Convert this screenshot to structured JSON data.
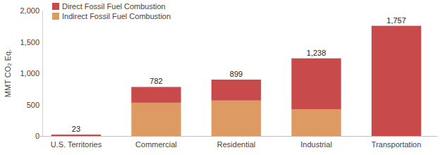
{
  "chart_data": {
    "type": "bar",
    "stacked": true,
    "y_label": "MMT CO₂ Eq.",
    "categories": [
      "U.S. Territories",
      "Commercial",
      "Residential",
      "Industrial",
      "Transportation"
    ],
    "series": [
      {
        "name": "Direct Fossil Fuel Combustion",
        "color": "#c94a4b",
        "values": [
          23,
          252,
          334,
          813,
          1757
        ]
      },
      {
        "name": "Indirect Fossil Fuel Combustion",
        "color": "#dd9a62",
        "values": [
          0,
          530,
          565,
          425,
          0
        ]
      }
    ],
    "totals": [
      23,
      782,
      899,
      1238,
      1757
    ],
    "ylim": [
      0,
      2000
    ],
    "yticks": [
      0,
      500,
      {
        "value": 1000,
        "label": "1,000"
      },
      {
        "value": 1500,
        "label": "1,500"
      },
      {
        "value": 2000,
        "label": "2,000"
      }
    ],
    "grid": false,
    "legend": "top-left"
  }
}
